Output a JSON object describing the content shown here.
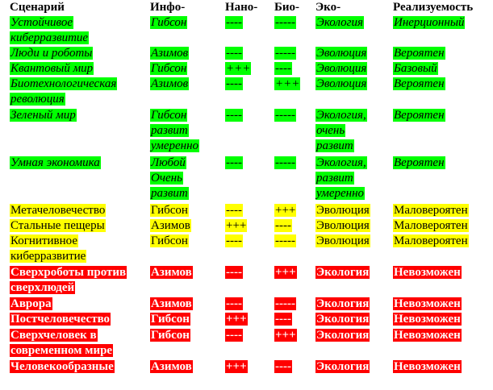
{
  "header": [
    "Сценарий",
    "Инфо-",
    "Нано-",
    "Био-",
    "Эко-",
    "Реализуемость"
  ],
  "rows": [
    {
      "tone": "g",
      "cells": [
        [
          "Устойчивое",
          "киберразвитие"
        ],
        [
          "Гибсон"
        ],
        [
          "----"
        ],
        [
          "-----"
        ],
        [
          "Экология"
        ],
        [
          "Инерционный"
        ]
      ]
    },
    {
      "tone": "g",
      "cells": [
        [
          "Люди и роботы"
        ],
        [
          "Азимов"
        ],
        [
          "----"
        ],
        [
          "-----"
        ],
        [
          "Эволюция"
        ],
        [
          "Вероятен"
        ]
      ]
    },
    {
      "tone": "g",
      "cells": [
        [
          "Квантовый мир"
        ],
        [
          "Гибсон"
        ],
        [
          "+++"
        ],
        [
          "----"
        ],
        [
          "Эволюция"
        ],
        [
          "Базовый"
        ]
      ]
    },
    {
      "tone": "g",
      "cells": [
        [
          "Биотехнологическая",
          "революция"
        ],
        [
          "Азимов"
        ],
        [
          "----"
        ],
        [
          "+++"
        ],
        [
          "Эволюция"
        ],
        [
          "Вероятен"
        ]
      ]
    },
    {
      "tone": "g",
      "cells": [
        [
          "Зеленый мир"
        ],
        [
          "Гибсон",
          "развит",
          "умеренно"
        ],
        [
          "----"
        ],
        [
          "-----"
        ],
        [
          "Экология,",
          "очень",
          "развит"
        ],
        [
          "Вероятен"
        ]
      ]
    },
    {
      "tone": "g",
      "cells": [
        [
          "Умная экономика"
        ],
        [
          "Любой",
          "Очень",
          "развит"
        ],
        [
          "----"
        ],
        [
          "-----"
        ],
        [
          "Экология,",
          "развит",
          "умеренно"
        ],
        [
          "Вероятен"
        ]
      ]
    },
    {
      "tone": "y",
      "cells": [
        [
          "Метачеловечество"
        ],
        [
          "Гибсон"
        ],
        [
          "----"
        ],
        [
          "+++"
        ],
        [
          "Эволюция"
        ],
        [
          "Маловероятен"
        ]
      ]
    },
    {
      "tone": "y",
      "cells": [
        [
          "Стальные пещеры"
        ],
        [
          "Азимов"
        ],
        [
          "+++"
        ],
        [
          "----"
        ],
        [
          "Эволюция"
        ],
        [
          "Маловероятен"
        ]
      ]
    },
    {
      "tone": "y",
      "cells": [
        [
          "Когнитивное",
          "киберразвитие"
        ],
        [
          "Гибсон"
        ],
        [
          "----"
        ],
        [
          "-----"
        ],
        [
          "Эволюция"
        ],
        [
          "Маловероятен"
        ]
      ]
    },
    {
      "tone": "r",
      "cells": [
        [
          "Сверхроботы против",
          "сверхлюдей"
        ],
        [
          "Азимов"
        ],
        [
          "----"
        ],
        [
          "+++"
        ],
        [
          "Экология"
        ],
        [
          "Невозможен"
        ]
      ]
    },
    {
      "tone": "r",
      "cells": [
        [
          "Аврора"
        ],
        [
          "Азимов"
        ],
        [
          "----"
        ],
        [
          "-----"
        ],
        [
          "Экология"
        ],
        [
          "Невозможен"
        ]
      ]
    },
    {
      "tone": "r",
      "cells": [
        [
          "Постчеловечество"
        ],
        [
          "Гибсон"
        ],
        [
          "+++"
        ],
        [
          "----"
        ],
        [
          "Экология"
        ],
        [
          "Невозможен"
        ]
      ]
    },
    {
      "tone": "r",
      "cells": [
        [
          "Сверхчеловек в",
          "современном мире"
        ],
        [
          "Гибсон"
        ],
        [
          "----"
        ],
        [
          "+++"
        ],
        [
          "Экология"
        ],
        [
          "Невозможен"
        ]
      ]
    },
    {
      "tone": "r",
      "cells": [
        [
          "Человекообразные"
        ],
        [
          "Азимов"
        ],
        [
          "+++"
        ],
        [
          "----"
        ],
        [
          "Экология"
        ],
        [
          "Невозможен"
        ]
      ]
    }
  ]
}
